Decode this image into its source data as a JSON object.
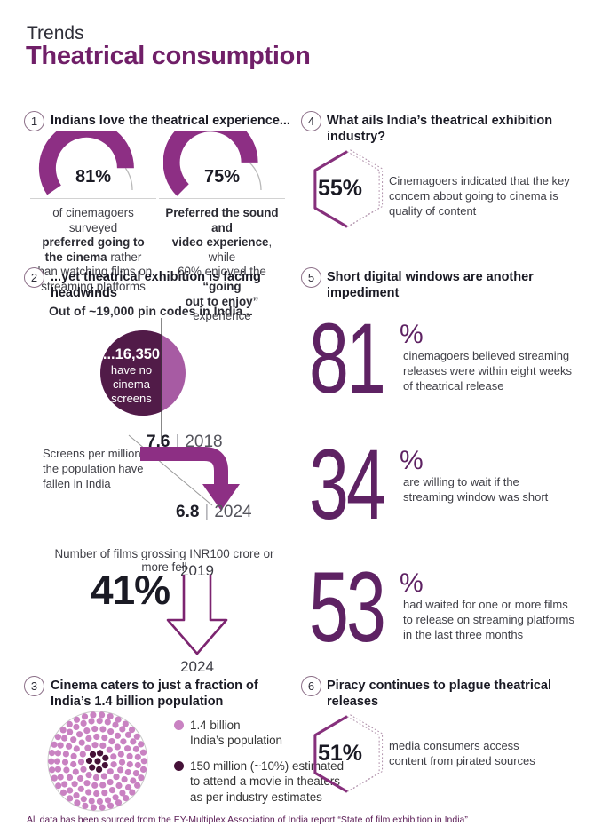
{
  "header": {
    "eyebrow": "Trends",
    "title": "Theatrical consumption"
  },
  "colors": {
    "title_purple": "#701f68",
    "arc_purple": "#8d2f84",
    "stat_purple": "#5e2263",
    "outline_purple": "#7c2470",
    "hex_purple": "#86307c",
    "hex_dotted": "#b193ac",
    "pie_dark": "#511b48",
    "pie_light": "#a75ba3",
    "dot_light": "#c982c2",
    "dot_dark": "#451138",
    "footer_purple": "#5a1b55"
  },
  "sections": {
    "s1": {
      "num": "1",
      "heading": "Indians love the theatrical experience...",
      "gauges": [
        {
          "percent": 81,
          "label": "81%",
          "caption": [
            [
              {
                "t": "of cinemagoers surveyed"
              }
            ],
            [
              {
                "t": "preferred going to",
                "b": 1
              }
            ],
            [
              {
                "t": "the cinema",
                "b": 1
              },
              {
                "t": " rather"
              }
            ],
            [
              {
                "t": "than watching films on"
              }
            ],
            [
              {
                "t": "streaming platforms"
              }
            ]
          ]
        },
        {
          "percent": 75,
          "label": "75%",
          "caption": [
            [
              {
                "t": "Preferred the sound and",
                "b": 1
              }
            ],
            [
              {
                "t": "video experience",
                "b": 1
              },
              {
                "t": ", while"
              }
            ],
            [
              {
                "t": "60% enjoyed the "
              },
              {
                "t": "“going",
                "b": 1
              }
            ],
            [
              {
                "t": "out to enjoy”",
                "b": 1
              },
              {
                "t": " experience"
              }
            ]
          ]
        }
      ]
    },
    "s2": {
      "num": "2",
      "heading": "...yet theatrical exhibition is facing\nheadwinds",
      "pin_caption": "Out of ~19,000 pin codes in India...",
      "pie": {
        "value_label": "...16,350",
        "sub_label": "have no\ncinema\nscreens"
      },
      "screens": {
        "label": "Screens per million of\nthe population have\nfallen in India",
        "from_value": "7.6",
        "from_year": "2018",
        "divider": "|",
        "to_value": "6.8",
        "to_year": "2024"
      },
      "films": {
        "caption": "Number of films grossing INR100 crore or more fell",
        "from_year": "2019",
        "drop": "41%",
        "to_year": "2024"
      }
    },
    "s3": {
      "num": "3",
      "heading": "Cinema caters to just a fraction of\nIndia’s 1.4 billion population",
      "legend": [
        {
          "swatch": "light",
          "text": "1.4 billion\nIndia’s population"
        },
        {
          "swatch": "dark",
          "text": "150 million (~10%) estimated\nto attend a movie in theaters\nas per industry estimates"
        }
      ]
    },
    "s4": {
      "num": "4",
      "heading": "What ails India’s theatrical exhibition\nindustry?",
      "stat": "55%",
      "text": "Cinemagoers indicated that the key\nconcern about going to cinema is\nquality of content"
    },
    "s5": {
      "num": "5",
      "heading": "Short digital windows are another\nimpediment",
      "stats": [
        {
          "value": "81",
          "unit": "%",
          "text": "cinemagoers believed streaming\nreleases were within eight weeks\nof theatrical release"
        },
        {
          "value": "34",
          "unit": "%",
          "text": "are willing to wait if the\nstreaming window was short"
        },
        {
          "value": "53",
          "unit": "%",
          "text": "had waited for one or more films\nto release on streaming platforms\nin the last three months"
        }
      ]
    },
    "s6": {
      "num": "6",
      "heading": "Piracy continues to plague theatrical\nreleases",
      "stat": "51%",
      "text": "media consumers access\ncontent from pirated sources"
    }
  },
  "footer": {
    "note": "All data has been sourced from the EY-Multiplex Association of India report “State of film exhibition in India”"
  },
  "chart_data": [
    {
      "type": "pie",
      "subtype": "gauge",
      "title": "Indians love the theatrical experience...",
      "series": [
        {
          "name": "preferred going to the cinema rather than watching films on streaming platforms",
          "value": 81
        },
        {
          "name": "preferred the sound and video experience",
          "value": 75
        },
        {
          "name": "enjoyed the going out to enjoy experience",
          "value": 60
        }
      ],
      "unit": "%"
    },
    {
      "type": "pie",
      "title": "Out of ~19,000 pin codes in India...",
      "categories": [
        "pin codes with no cinema screens",
        "pin codes with cinema screens"
      ],
      "values": [
        16350,
        2650
      ],
      "total": 19000
    },
    {
      "type": "line",
      "title": "Screens per million of the population have fallen in India",
      "x": [
        2018,
        2024
      ],
      "values": [
        7.6,
        6.8
      ]
    },
    {
      "type": "bar",
      "title": "Number of films grossing INR100 crore or more fell",
      "categories": [
        2019,
        2024
      ],
      "change_pct": -41
    },
    {
      "type": "bar",
      "title": "Short digital windows are another impediment",
      "categories": [
        "believed streaming releases were within eight weeks of theatrical release",
        "are willing to wait if the streaming window was short",
        "had waited for one or more films to release on streaming platforms in the last three months"
      ],
      "values": [
        81,
        34,
        53
      ],
      "unit": "%"
    },
    {
      "type": "pie",
      "title": "What ails India's theatrical exhibition industry?",
      "categories": [
        "key concern about going to cinema is quality of content"
      ],
      "values": [
        55
      ],
      "unit": "%"
    },
    {
      "type": "pie",
      "title": "Cinema caters to just a fraction of India's 1.4 billion population",
      "categories": [
        "India's population (million)",
        "estimated to attend a movie in theaters (million)"
      ],
      "values": [
        1400,
        150
      ]
    },
    {
      "type": "pie",
      "title": "Piracy continues to plague theatrical releases",
      "categories": [
        "media consumers access content from pirated sources"
      ],
      "values": [
        51
      ],
      "unit": "%"
    }
  ]
}
